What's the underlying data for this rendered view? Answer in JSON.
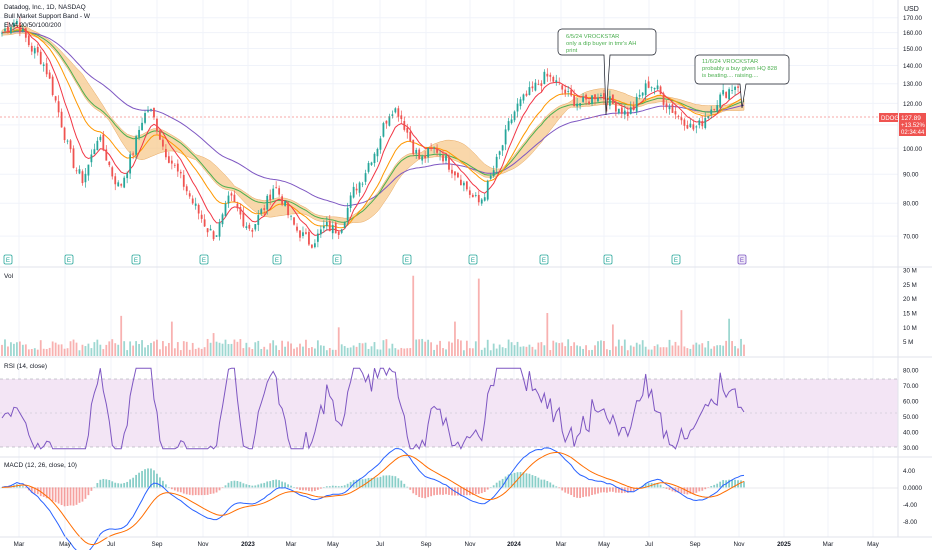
{
  "header": {
    "symbol_line": "Datadog, Inc., 1D, NASDAQ",
    "indicator_1": "Bull Market Support Band - W",
    "indicator_2": "EMA 20/50/100/200"
  },
  "currency": "USD",
  "price_tag": {
    "symbol": "DDOG",
    "price": "127.89",
    "change": "+13.52%",
    "countdown": "02:34:44"
  },
  "pane_labels": {
    "volume": "Vol",
    "rsi": "RSI (14, close)",
    "macd": "MACD (12, 26, close, 10)"
  },
  "annotations": [
    {
      "lines": [
        "6/5/24 VROCKSTAR",
        "only a dip buyer in tmr's AH",
        "print"
      ]
    },
    {
      "lines": [
        "11/6/24 VROCKSTAR",
        "probably a buy given HQ 828",
        "is beating.... raising...."
      ]
    }
  ],
  "earnings_marker": "E",
  "colors": {
    "up": "#26a69a",
    "down": "#ef5350",
    "ema20": "#f23645",
    "ema50": "#ff9800",
    "ema100": "#4caf50",
    "ema200": "#7e57c2",
    "band_fill": "#f7c98e",
    "rsi": "#7e57c2",
    "rsi_fill": "#f3e5f5",
    "macd": "#2962ff",
    "signal": "#ff6d00",
    "grid": "#f0f3fa",
    "text": "#131722",
    "axis_text": "#131722"
  },
  "chart_data": {
    "type": "candlestick",
    "x_tick_labels": [
      "Mar",
      "May",
      "Jul",
      "Sep",
      "Nov",
      "2023",
      "Mar",
      "May",
      "Jul",
      "Sep",
      "Nov",
      "2024",
      "Mar",
      "May",
      "Jul",
      "Sep",
      "Nov",
      "2025",
      "Mar",
      "May"
    ],
    "price_axis": {
      "ticks": [
        "170.00",
        "160.00",
        "150.00",
        "140.00",
        "130.00",
        "120.00",
        "110.00",
        "100.00",
        "90.00",
        "80.00",
        "70.00"
      ],
      "range": [
        63,
        174
      ],
      "scale": "log"
    },
    "price_series": {
      "description": "daily closes, approximate, weekly sample Mar 2022 - Nov 2024",
      "closes": [
        160,
        165,
        168,
        158,
        150,
        146,
        138,
        125,
        112,
        100,
        92,
        88,
        95,
        105,
        98,
        90,
        85,
        92,
        100,
        112,
        118,
        110,
        100,
        95,
        90,
        85,
        80,
        76,
        72,
        70,
        75,
        82,
        78,
        74,
        72,
        76,
        80,
        86,
        82,
        76,
        72,
        70,
        68,
        70,
        73,
        72,
        72,
        78,
        85,
        88,
        95,
        100,
        110,
        118,
        116,
        108,
        100,
        95,
        98,
        100,
        97,
        93,
        90,
        86,
        82,
        80,
        85,
        92,
        100,
        110,
        118,
        122,
        126,
        130,
        134,
        132,
        128,
        124,
        121,
        120,
        122,
        125,
        123,
        120,
        118,
        115,
        118,
        125,
        130,
        128,
        122,
        118,
        114,
        112,
        108,
        110,
        115,
        120,
        124,
        127,
        130,
        127.89
      ]
    },
    "volume_axis": {
      "ticks": [
        "30 M",
        "25 M",
        "20 M",
        "15 M",
        "10 M",
        "5 M"
      ],
      "range": [
        0,
        30
      ]
    },
    "rsi_axis": {
      "ticks": [
        "80.00",
        "70.00",
        "60.00",
        "50.00",
        "40.00",
        "30.00"
      ],
      "range": [
        25,
        85
      ],
      "bands": [
        30,
        70
      ]
    },
    "macd_axis": {
      "ticks": [
        "4.00",
        "0.0000",
        "-4.00",
        "-8.00"
      ],
      "range": [
        -11,
        6
      ]
    },
    "earnings_count": 12
  }
}
